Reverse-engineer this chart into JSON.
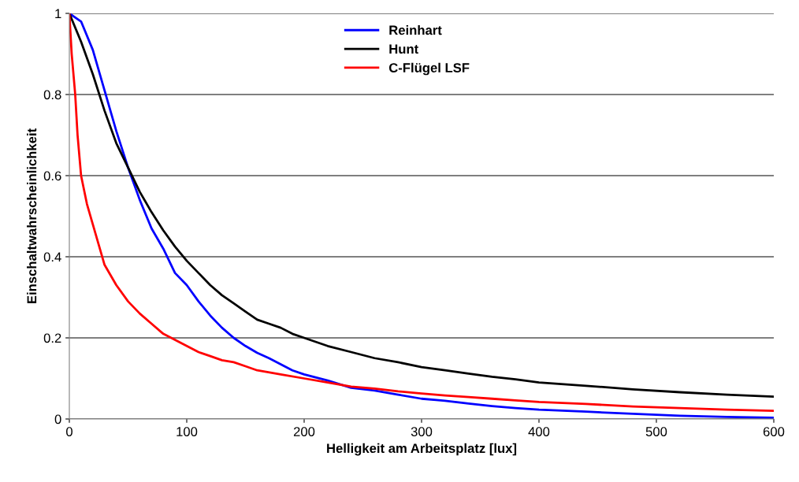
{
  "chart_data": {
    "type": "line",
    "xlabel": "Helligkeit am Arbeitsplatz [lux]",
    "ylabel": "Einschaltwahrscheinlichkeit",
    "xlim": [
      0,
      600
    ],
    "xticks": [
      0,
      100,
      200,
      300,
      400,
      500,
      600
    ],
    "ylim": [
      0,
      1
    ],
    "yticks": [
      0,
      {
        "value": 0.2,
        "label": "0.2"
      },
      {
        "value": 0.4,
        "label": "0.4"
      },
      {
        "value": 0.6,
        "label": "0.6"
      },
      {
        "value": 0.8,
        "label": "0.8"
      },
      1
    ],
    "grid": "y",
    "legend": "top",
    "marker": "none",
    "line_style": "solid",
    "series": [
      {
        "name": "Reinhart",
        "color": "#0000ff",
        "x": [
          0,
          10,
          20,
          30,
          40,
          50,
          60,
          70,
          80,
          90,
          100,
          110,
          120,
          130,
          140,
          150,
          160,
          170,
          180,
          190,
          200,
          220,
          240,
          260,
          280,
          300,
          320,
          340,
          360,
          380,
          400,
          440,
          480,
          520,
          560,
          600
        ],
        "values": [
          1.0,
          0.98,
          0.91,
          0.81,
          0.71,
          0.62,
          0.54,
          0.47,
          0.42,
          0.36,
          0.33,
          0.29,
          0.255,
          0.225,
          0.2,
          0.18,
          0.163,
          0.15,
          0.135,
          0.12,
          0.11,
          0.095,
          0.077,
          0.07,
          0.06,
          0.05,
          0.045,
          0.038,
          0.032,
          0.027,
          0.023,
          0.018,
          0.013,
          0.008,
          0.005,
          0.003
        ]
      },
      {
        "name": "Hunt",
        "color": "#000000",
        "x": [
          0,
          10,
          20,
          30,
          40,
          50,
          60,
          70,
          80,
          90,
          100,
          110,
          120,
          130,
          140,
          150,
          160,
          170,
          180,
          190,
          200,
          220,
          240,
          260,
          280,
          300,
          320,
          340,
          360,
          380,
          400,
          440,
          480,
          520,
          560,
          600
        ],
        "values": [
          1.0,
          0.93,
          0.85,
          0.76,
          0.68,
          0.62,
          0.56,
          0.51,
          0.465,
          0.425,
          0.39,
          0.36,
          0.33,
          0.305,
          0.285,
          0.265,
          0.245,
          0.235,
          0.225,
          0.21,
          0.2,
          0.18,
          0.165,
          0.15,
          0.14,
          0.128,
          0.12,
          0.112,
          0.104,
          0.098,
          0.09,
          0.082,
          0.073,
          0.066,
          0.06,
          0.055
        ]
      },
      {
        "name": "C-Flügel LSF",
        "color": "#ff0000",
        "x": [
          0,
          2,
          5,
          7,
          10,
          15,
          20,
          25,
          30,
          40,
          50,
          60,
          70,
          80,
          90,
          100,
          110,
          120,
          130,
          140,
          150,
          160,
          180,
          200,
          220,
          240,
          260,
          280,
          300,
          320,
          340,
          360,
          380,
          400,
          440,
          480,
          520,
          560,
          600
        ],
        "values": [
          1.0,
          0.9,
          0.8,
          0.7,
          0.6,
          0.53,
          0.48,
          0.43,
          0.38,
          0.33,
          0.29,
          0.26,
          0.235,
          0.21,
          0.195,
          0.18,
          0.165,
          0.155,
          0.145,
          0.14,
          0.13,
          0.12,
          0.11,
          0.1,
          0.09,
          0.08,
          0.075,
          0.068,
          0.063,
          0.058,
          0.054,
          0.05,
          0.046,
          0.042,
          0.037,
          0.031,
          0.027,
          0.023,
          0.02
        ]
      }
    ]
  }
}
